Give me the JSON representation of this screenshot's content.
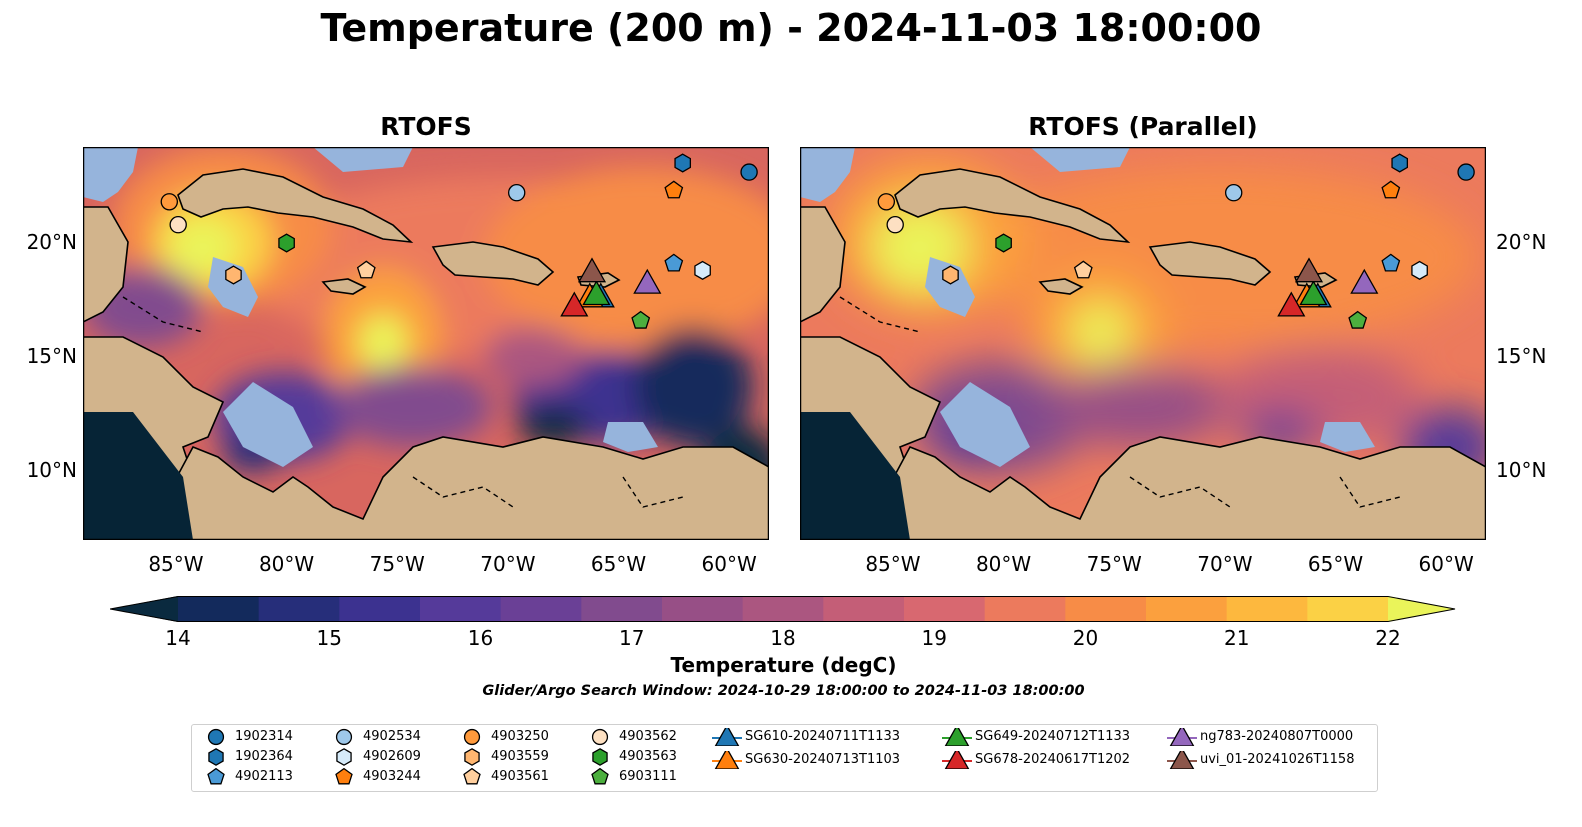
{
  "figure": {
    "title": "Temperature (200 m) - 2024-11-03 18:00:00",
    "panels": [
      {
        "title": "RTOFS"
      },
      {
        "title": "RTOFS (Parallel)"
      }
    ],
    "lon_ticks": [
      "85°W",
      "80°W",
      "75°W",
      "70°W",
      "65°W",
      "60°W"
    ],
    "lat_ticks": [
      "20°N",
      "15°N",
      "10°N"
    ],
    "colorbar": {
      "label": "Temperature (degC)",
      "ticks": [
        "14",
        "15",
        "16",
        "17",
        "18",
        "19",
        "20",
        "21",
        "22"
      ],
      "colors": [
        "#0a2a3f",
        "#132a5c",
        "#262e7a",
        "#3c3290",
        "#553a9a",
        "#6a4096",
        "#814b8e",
        "#974f86",
        "#ab5680",
        "#c45e77",
        "#d86870",
        "#ec7a5d",
        "#f78c47",
        "#fba03e",
        "#fdb83e",
        "#fbd145",
        "#eaf45a"
      ]
    },
    "search_window": "Glider/Argo Search Window: 2024-10-29 18:00:00 to 2024-11-03 18:00:00"
  },
  "colors": {
    "land": "#d2b48c",
    "shallow": "#96b4dc",
    "deep_dark": "#062436"
  },
  "legend": [
    {
      "label": "1902314",
      "marker": "circle",
      "color": "#1f77b4"
    },
    {
      "label": "1902364",
      "marker": "hexagon",
      "color": "#1f77b4"
    },
    {
      "label": "4902113",
      "marker": "pentagon",
      "color": "#4a9ad6"
    },
    {
      "label": "4902534",
      "marker": "circle",
      "color": "#9ec8ea"
    },
    {
      "label": "4902609",
      "marker": "hexagon",
      "color": "#d6ebfa"
    },
    {
      "label": "4903244",
      "marker": "pentagon",
      "color": "#ff7f0e"
    },
    {
      "label": "4903250",
      "marker": "circle",
      "color": "#ff9a3c"
    },
    {
      "label": "4903559",
      "marker": "hexagon",
      "color": "#ffb670"
    },
    {
      "label": "4903561",
      "marker": "pentagon",
      "color": "#ffcf9e"
    },
    {
      "label": "4903562",
      "marker": "circle",
      "color": "#fde0c2"
    },
    {
      "label": "4903563",
      "marker": "hexagon",
      "color": "#2ca02c"
    },
    {
      "label": "6903111",
      "marker": "pentagon",
      "color": "#4caf3e"
    },
    {
      "label": "SG610-20240711T1133",
      "marker": "triangle-line",
      "color": "#1f77b4"
    },
    {
      "label": "SG630-20240713T1103",
      "marker": "triangle-line",
      "color": "#ff7f0e"
    },
    {
      "label": "SG649-20240712T1133",
      "marker": "triangle-line",
      "color": "#2ca02c"
    },
    {
      "label": "SG678-20240617T1202",
      "marker": "triangle-line",
      "color": "#d62728"
    },
    {
      "label": "ng783-20240807T0000",
      "marker": "triangle-line",
      "color": "#9467bd"
    },
    {
      "label": "uvi_01-20241026T1158",
      "marker": "triangle-line",
      "color": "#8c564b"
    }
  ],
  "observations": [
    {
      "id": "1902314",
      "lon": -59.1,
      "lat": 23.1
    },
    {
      "id": "1902364",
      "lon": -62.1,
      "lat": 23.5
    },
    {
      "id": "4902113",
      "lon": -62.5,
      "lat": 19.1
    },
    {
      "id": "4902534",
      "lon": -69.6,
      "lat": 22.2
    },
    {
      "id": "4902609",
      "lon": -61.2,
      "lat": 18.8
    },
    {
      "id": "4903244",
      "lon": -62.5,
      "lat": 22.3
    },
    {
      "id": "4903250",
      "lon": -85.3,
      "lat": 21.8
    },
    {
      "id": "4903559",
      "lon": -82.4,
      "lat": 18.6
    },
    {
      "id": "4903561",
      "lon": -76.4,
      "lat": 18.8
    },
    {
      "id": "4903562",
      "lon": -84.9,
      "lat": 20.8
    },
    {
      "id": "4903563",
      "lon": -80.0,
      "lat": 20.0
    },
    {
      "id": "6903111",
      "lon": -64.0,
      "lat": 16.6
    },
    {
      "id": "SG610-20240711T1133",
      "lon": -65.8,
      "lat": 17.6
    },
    {
      "id": "SG630-20240713T1103",
      "lon": -66.3,
      "lat": 17.6
    },
    {
      "id": "SG649-20240712T1133",
      "lon": -66.0,
      "lat": 17.7
    },
    {
      "id": "SG678-20240617T1202",
      "lon": -67.0,
      "lat": 17.2
    },
    {
      "id": "ng783-20240807T0000",
      "lon": -63.7,
      "lat": 18.2
    },
    {
      "id": "uvi_01-20241026T1158",
      "lon": -66.2,
      "lat": 18.7
    }
  ]
}
